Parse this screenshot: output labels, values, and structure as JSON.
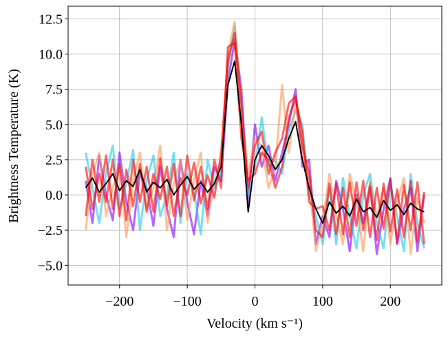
{
  "chart_data": {
    "type": "line",
    "xlabel": "Velocity (km s⁻¹)",
    "ylabel": "Brightness Temperature (K)",
    "xlim": [
      -276,
      276
    ],
    "ylim": [
      -6.4,
      13.4
    ],
    "xticks": [
      {
        "value": -200,
        "label": "−200"
      },
      {
        "value": -100,
        "label": "−100"
      },
      0,
      100,
      200
    ],
    "yticks": [
      {
        "value": -5,
        "label": "−5.0"
      },
      {
        "value": -2.5,
        "label": "−2.5"
      },
      {
        "value": 0,
        "label": "0.0"
      },
      2.5,
      {
        "value": 5,
        "label": "5.0"
      },
      7.5,
      {
        "value": 10,
        "label": "10.0"
      },
      12.5
    ],
    "grid": true,
    "x": [
      -250,
      -240,
      -230,
      -220,
      -210,
      -200,
      -190,
      -180,
      -170,
      -160,
      -150,
      -140,
      -130,
      -120,
      -110,
      -100,
      -90,
      -80,
      -70,
      -60,
      -50,
      -40,
      -30,
      -20,
      -10,
      0,
      10,
      20,
      30,
      40,
      50,
      60,
      70,
      80,
      90,
      100,
      110,
      120,
      130,
      140,
      150,
      160,
      170,
      180,
      190,
      200,
      210,
      220,
      230,
      240,
      250
    ],
    "series": [
      {
        "color": "#8000ff",
        "values": [
          1.0,
          -2.0,
          2.8,
          0.0,
          -1.8,
          3.0,
          -0.5,
          -2.5,
          1.5,
          0.5,
          -2.2,
          2.0,
          -1.0,
          -3.0,
          2.5,
          -0.5,
          -2.8,
          1.0,
          -1.5,
          2.0,
          1.0,
          8.0,
          11.0,
          7.5,
          -0.5,
          5.0,
          2.0,
          3.5,
          1.0,
          3.0,
          5.0,
          7.5,
          2.0,
          2.5,
          -3.5,
          -1.5,
          -3.0,
          1.0,
          -1.0,
          -4.0,
          0.0,
          -2.0,
          0.8,
          -4.2,
          -1.0,
          1.2,
          -3.5,
          -1.0,
          0.5,
          -4.0,
          0.0
        ]
      },
      {
        "color": "#1cc8e8",
        "values": [
          3.0,
          0.5,
          -2.0,
          1.5,
          3.5,
          -1.0,
          0.8,
          3.2,
          -2.5,
          1.0,
          2.8,
          -1.5,
          0.0,
          3.0,
          -2.0,
          1.5,
          0.2,
          -2.8,
          2.5,
          0.5,
          1.5,
          9.0,
          12.0,
          5.5,
          0.0,
          2.0,
          5.5,
          2.0,
          2.5,
          1.5,
          4.5,
          6.0,
          5.0,
          0.0,
          -1.5,
          -3.5,
          0.5,
          -3.5,
          1.2,
          -1.5,
          -3.8,
          0.0,
          1.5,
          -2.0,
          -3.8,
          0.8,
          -1.5,
          -4.0,
          1.5,
          -2.0,
          -3.8
        ]
      },
      {
        "color": "#ff964f",
        "values": [
          -2.5,
          1.5,
          3.0,
          -1.5,
          0.5,
          2.0,
          -3.0,
          1.0,
          3.0,
          -1.0,
          0.5,
          3.5,
          -2.5,
          0.8,
          2.5,
          -1.8,
          1.0,
          3.0,
          -2.0,
          1.0,
          2.5,
          10.0,
          12.3,
          6.0,
          1.5,
          4.0,
          3.5,
          0.5,
          2.0,
          7.8,
          3.0,
          6.5,
          3.0,
          1.0,
          -4.0,
          -2.0,
          1.5,
          -1.5,
          -3.5,
          1.5,
          -0.5,
          -4.0,
          1.0,
          -1.5,
          0.5,
          -3.5,
          -0.5,
          1.2,
          -4.2,
          -0.2,
          -2.0
        ]
      },
      {
        "color": "#ff0000",
        "values": [
          2.0,
          -1.0,
          1.5,
          -0.5,
          2.5,
          -1.5,
          1.8,
          -0.8,
          2.2,
          -1.2,
          1.5,
          -0.3,
          2.0,
          -1.5,
          1.2,
          0.0,
          2.3,
          -0.6,
          1.4,
          -0.2,
          3.0,
          9.5,
          11.5,
          6.5,
          0.5,
          3.5,
          4.5,
          1.5,
          3.0,
          4.0,
          6.5,
          7.0,
          3.5,
          1.5,
          -2.5,
          -3.0,
          0.8,
          -2.8,
          0.5,
          -3.0,
          0.9,
          -2.5,
          0.6,
          -3.2,
          0.8,
          -2.6,
          0.4,
          -3.0,
          1.0,
          -3.3,
          0.2
        ]
      },
      {
        "color": "#ff0000",
        "values": [
          -1.5,
          2.5,
          -0.5,
          2.8,
          -1.0,
          2.2,
          -1.8,
          2.5,
          -0.5,
          2.0,
          -1.2,
          2.6,
          -0.8,
          2.2,
          -1.5,
          2.8,
          -0.4,
          2.0,
          -1.0,
          2.5,
          0.5,
          10.5,
          10.8,
          4.0,
          1.0,
          1.5,
          3.0,
          2.5,
          0.5,
          2.0,
          5.5,
          6.8,
          4.5,
          -0.5,
          -1.0,
          -0.8,
          -2.5,
          0.8,
          -2.8,
          0.9,
          -2.2,
          1.0,
          -3.0,
          0.5,
          -2.4,
          1.1,
          -3.4,
          0.7,
          -2.5,
          0.9,
          -3.5
        ]
      },
      {
        "color": "#000000",
        "values": [
          0.5,
          1.2,
          0.2,
          0.8,
          1.5,
          0.3,
          1.0,
          0.6,
          1.8,
          0.2,
          0.9,
          0.5,
          1.1,
          0.0,
          0.7,
          1.3,
          0.4,
          0.9,
          0.2,
          0.8,
          2.0,
          7.8,
          9.5,
          5.0,
          -1.2,
          2.5,
          3.5,
          2.8,
          1.8,
          2.5,
          4.0,
          5.2,
          2.5,
          0.5,
          -1.0,
          -2.0,
          -0.5,
          -1.3,
          -0.8,
          -1.5,
          -0.3,
          -1.2,
          -0.9,
          -1.6,
          -0.4,
          -1.1,
          -0.7,
          -1.4,
          -0.6,
          -1.0,
          -1.2
        ]
      }
    ]
  }
}
